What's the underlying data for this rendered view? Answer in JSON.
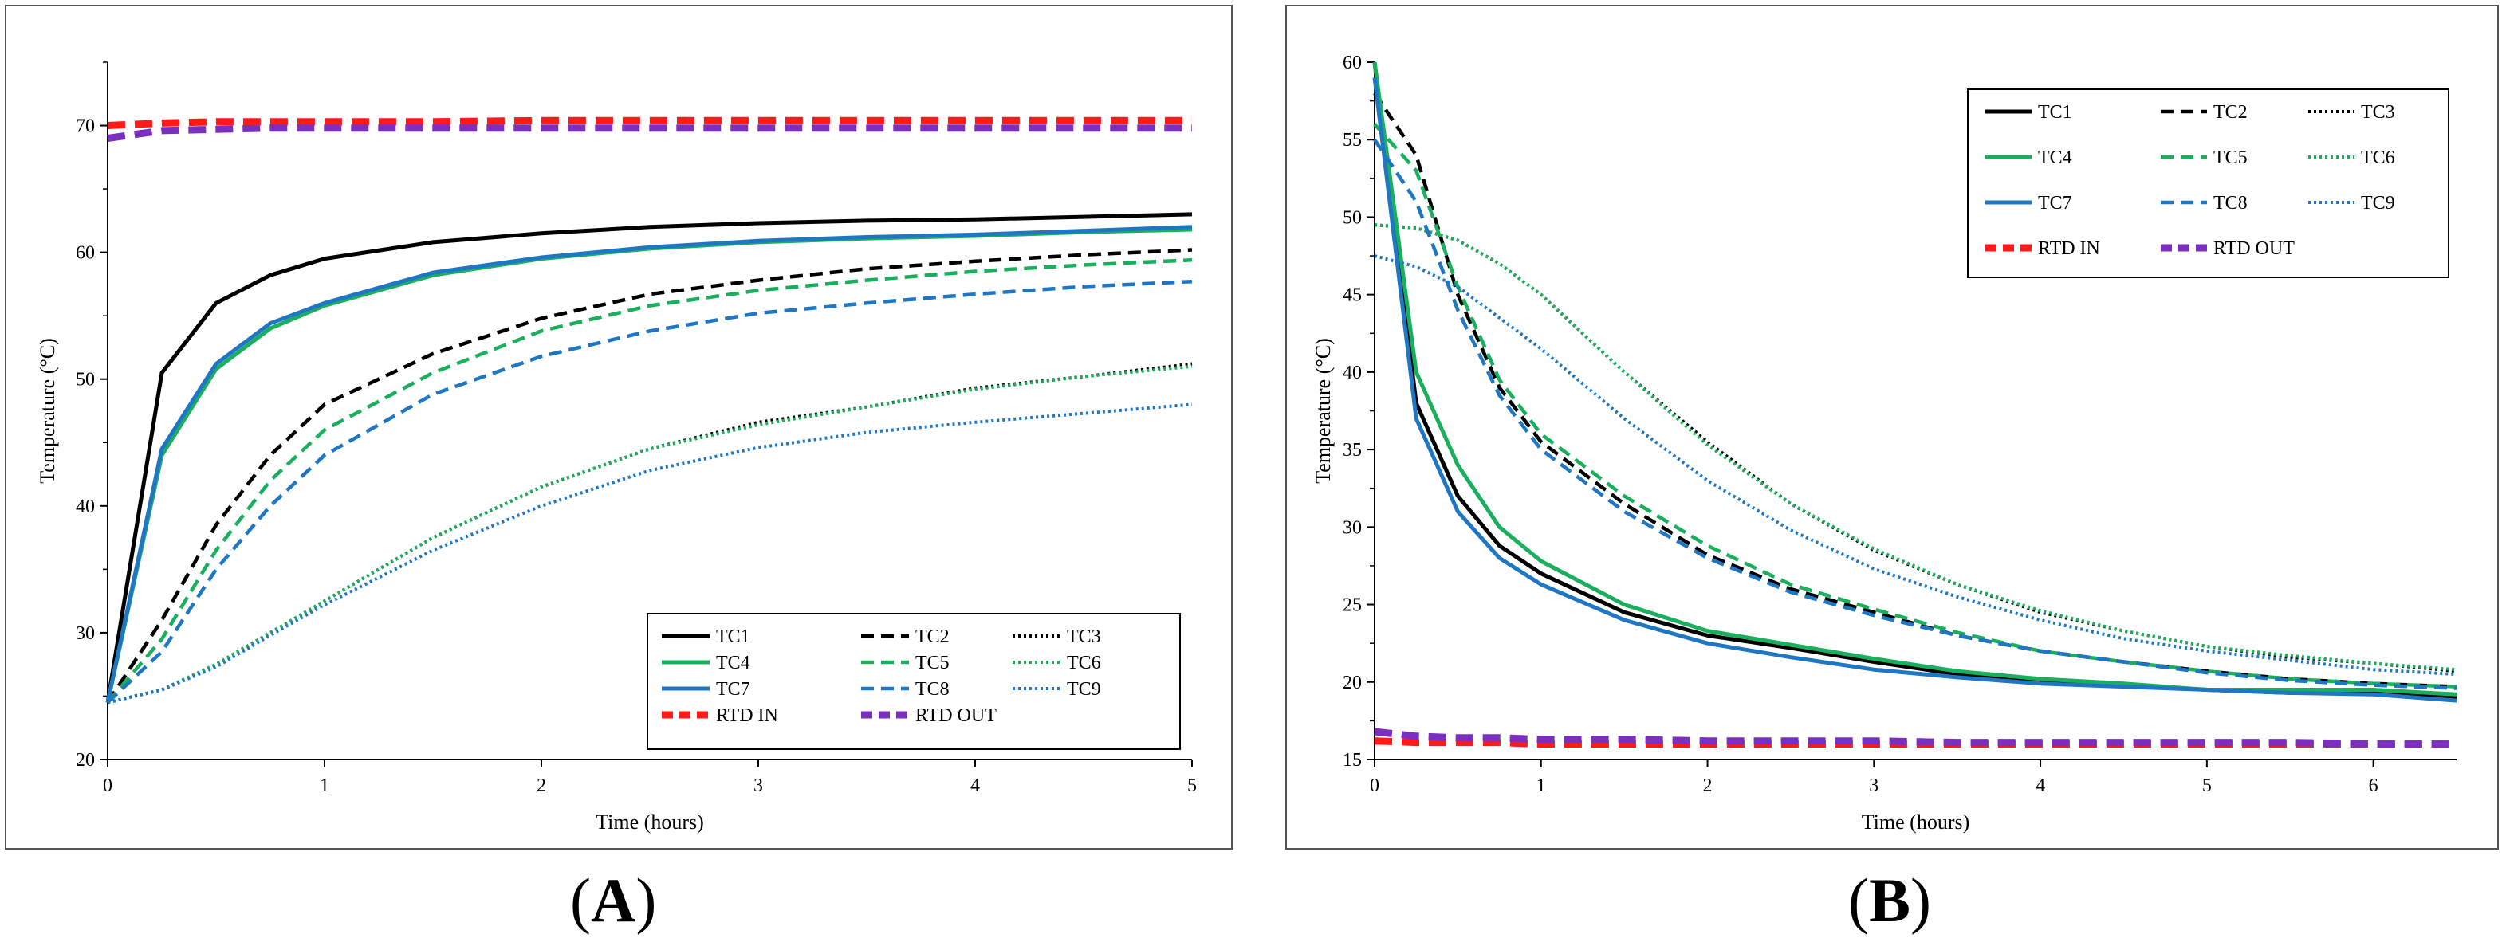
{
  "panels": {
    "a": {
      "label_open": "(",
      "label_letter": "A",
      "label_close": ")"
    },
    "b": {
      "label_open": "(",
      "label_letter": "B",
      "label_close": ")"
    }
  },
  "series_styles": [
    {
      "name": "TC1",
      "color": "#000000",
      "dash": "solid"
    },
    {
      "name": "TC2",
      "color": "#000000",
      "dash": "dashed"
    },
    {
      "name": "TC3",
      "color": "#000000",
      "dash": "dotted"
    },
    {
      "name": "TC4",
      "color": "#1aaf5d",
      "dash": "solid"
    },
    {
      "name": "TC5",
      "color": "#1aaf5d",
      "dash": "dashed"
    },
    {
      "name": "TC6",
      "color": "#1aaf5d",
      "dash": "dotted"
    },
    {
      "name": "TC7",
      "color": "#1f77c4",
      "dash": "solid"
    },
    {
      "name": "TC8",
      "color": "#1f77c4",
      "dash": "dashed"
    },
    {
      "name": "TC9",
      "color": "#1f77c4",
      "dash": "dotted"
    },
    {
      "name": "RTD IN",
      "color": "#ff1a1a",
      "dash": "heavydash"
    },
    {
      "name": "RTD OUT",
      "color": "#7b2fbe",
      "dash": "heavydash"
    }
  ],
  "chart_data": [
    {
      "type": "line",
      "panel": "A",
      "title": "",
      "xlabel": "Time (hours)",
      "ylabel": "Temperature (°C)",
      "xlim": [
        0,
        5
      ],
      "ylim": [
        20,
        75
      ],
      "xticks": [
        0,
        1,
        2,
        3,
        4,
        5
      ],
      "yticks": [
        20,
        30,
        40,
        50,
        60,
        70
      ],
      "legend": "bottom-right",
      "x": [
        0,
        0.25,
        0.5,
        0.75,
        1,
        1.5,
        2,
        2.5,
        3,
        3.5,
        4,
        4.5,
        5
      ],
      "series": [
        {
          "name": "TC1",
          "values": [
            24.5,
            50.5,
            56.0,
            58.2,
            59.5,
            60.8,
            61.5,
            62.0,
            62.3,
            62.5,
            62.6,
            62.8,
            63.0
          ]
        },
        {
          "name": "TC2",
          "values": [
            24.5,
            31.0,
            38.5,
            44.0,
            48.0,
            52.0,
            54.8,
            56.7,
            57.8,
            58.7,
            59.3,
            59.8,
            60.2
          ]
        },
        {
          "name": "TC3",
          "values": [
            24.5,
            25.5,
            27.5,
            30.0,
            32.5,
            37.5,
            41.5,
            44.5,
            46.6,
            47.8,
            49.3,
            50.2,
            51.2
          ]
        },
        {
          "name": "TC4",
          "values": [
            24.5,
            44.0,
            50.8,
            54.0,
            55.8,
            58.2,
            59.5,
            60.3,
            60.8,
            61.1,
            61.3,
            61.6,
            61.8
          ]
        },
        {
          "name": "TC5",
          "values": [
            24.5,
            29.5,
            36.5,
            42.0,
            46.0,
            50.5,
            53.8,
            55.8,
            57.0,
            57.8,
            58.5,
            59.0,
            59.4
          ]
        },
        {
          "name": "TC6",
          "values": [
            24.5,
            25.5,
            27.5,
            30.0,
            32.5,
            37.5,
            41.5,
            44.5,
            46.4,
            47.8,
            49.2,
            50.2,
            51.0
          ]
        },
        {
          "name": "TC7",
          "values": [
            24.5,
            44.5,
            51.2,
            54.4,
            56.0,
            58.4,
            59.6,
            60.4,
            60.9,
            61.2,
            61.4,
            61.7,
            62.0
          ]
        },
        {
          "name": "TC8",
          "values": [
            24.5,
            28.5,
            35.0,
            40.0,
            44.0,
            48.8,
            51.8,
            53.8,
            55.2,
            56.0,
            56.7,
            57.3,
            57.7
          ]
        },
        {
          "name": "TC9",
          "values": [
            24.5,
            25.5,
            27.3,
            29.8,
            32.2,
            36.5,
            40.0,
            42.8,
            44.6,
            45.8,
            46.6,
            47.3,
            48.0
          ]
        },
        {
          "name": "RTD IN",
          "values": [
            70.0,
            70.2,
            70.3,
            70.3,
            70.3,
            70.3,
            70.4,
            70.4,
            70.4,
            70.4,
            70.4,
            70.4,
            70.4
          ]
        },
        {
          "name": "RTD OUT",
          "values": [
            69.0,
            69.6,
            69.7,
            69.8,
            69.8,
            69.8,
            69.8,
            69.8,
            69.8,
            69.8,
            69.8,
            69.8,
            69.8
          ]
        }
      ]
    },
    {
      "type": "line",
      "panel": "B",
      "title": "",
      "xlabel": "Time (hours)",
      "ylabel": "Temperature (°C)",
      "xlim": [
        0,
        6.5
      ],
      "ylim": [
        15,
        60
      ],
      "xticks": [
        0,
        1,
        2,
        3,
        4,
        5,
        6
      ],
      "yticks": [
        15,
        20,
        25,
        30,
        35,
        40,
        45,
        50,
        55,
        60
      ],
      "legend": "top-right",
      "x": [
        0,
        0.25,
        0.5,
        0.75,
        1,
        1.5,
        2,
        2.5,
        3,
        3.5,
        4,
        4.5,
        5,
        5.5,
        6,
        6.5
      ],
      "series": [
        {
          "name": "TC1",
          "values": [
            60.0,
            38.0,
            32.0,
            28.8,
            27.0,
            24.5,
            23.0,
            22.2,
            21.3,
            20.5,
            20.0,
            19.8,
            19.5,
            19.3,
            19.3,
            19.0
          ]
        },
        {
          "name": "TC2",
          "values": [
            58.0,
            54.0,
            45.0,
            39.0,
            35.5,
            31.5,
            28.2,
            26.0,
            24.5,
            23.0,
            22.0,
            21.3,
            20.7,
            20.2,
            19.9,
            19.7
          ]
        },
        {
          "name": "TC3",
          "values": [
            49.5,
            49.3,
            48.5,
            47.0,
            45.0,
            40.0,
            35.5,
            31.5,
            28.5,
            26.3,
            24.5,
            23.3,
            22.3,
            21.6,
            21.2,
            20.7
          ]
        },
        {
          "name": "TC4",
          "values": [
            60.0,
            40.0,
            34.0,
            30.0,
            27.8,
            25.0,
            23.3,
            22.4,
            21.5,
            20.7,
            20.2,
            19.9,
            19.5,
            19.5,
            19.5,
            19.2
          ]
        },
        {
          "name": "TC5",
          "values": [
            56.0,
            53.0,
            45.5,
            39.5,
            36.0,
            32.0,
            28.8,
            26.3,
            24.7,
            23.2,
            22.0,
            21.3,
            20.7,
            20.2,
            19.9,
            19.7
          ]
        },
        {
          "name": "TC6",
          "values": [
            49.5,
            49.3,
            48.5,
            47.0,
            45.0,
            40.0,
            35.3,
            31.5,
            28.6,
            26.3,
            24.6,
            23.3,
            22.3,
            21.7,
            21.2,
            20.8
          ]
        },
        {
          "name": "TC7",
          "values": [
            59.0,
            37.0,
            31.0,
            28.0,
            26.3,
            24.0,
            22.5,
            21.6,
            20.8,
            20.3,
            19.9,
            19.7,
            19.5,
            19.3,
            19.2,
            18.8
          ]
        },
        {
          "name": "TC8",
          "values": [
            55.0,
            51.0,
            44.0,
            38.5,
            35.0,
            31.0,
            28.0,
            25.8,
            24.3,
            23.0,
            22.0,
            21.3,
            20.6,
            20.1,
            19.8,
            19.6
          ]
        },
        {
          "name": "TC9",
          "values": [
            47.5,
            46.8,
            45.5,
            43.5,
            41.5,
            37.0,
            33.0,
            29.8,
            27.3,
            25.5,
            24.0,
            22.8,
            22.0,
            21.4,
            20.8,
            20.5
          ]
        },
        {
          "name": "RTD IN",
          "values": [
            16.2,
            16.1,
            16.1,
            16.1,
            16.0,
            16.0,
            16.0,
            16.0,
            16.0,
            16.0,
            16.0,
            16.0,
            16.0,
            16.0,
            16.0,
            16.0
          ]
        },
        {
          "name": "RTD OUT",
          "values": [
            16.8,
            16.5,
            16.4,
            16.4,
            16.3,
            16.3,
            16.2,
            16.2,
            16.2,
            16.1,
            16.1,
            16.1,
            16.1,
            16.1,
            16.0,
            16.0
          ]
        }
      ]
    }
  ]
}
